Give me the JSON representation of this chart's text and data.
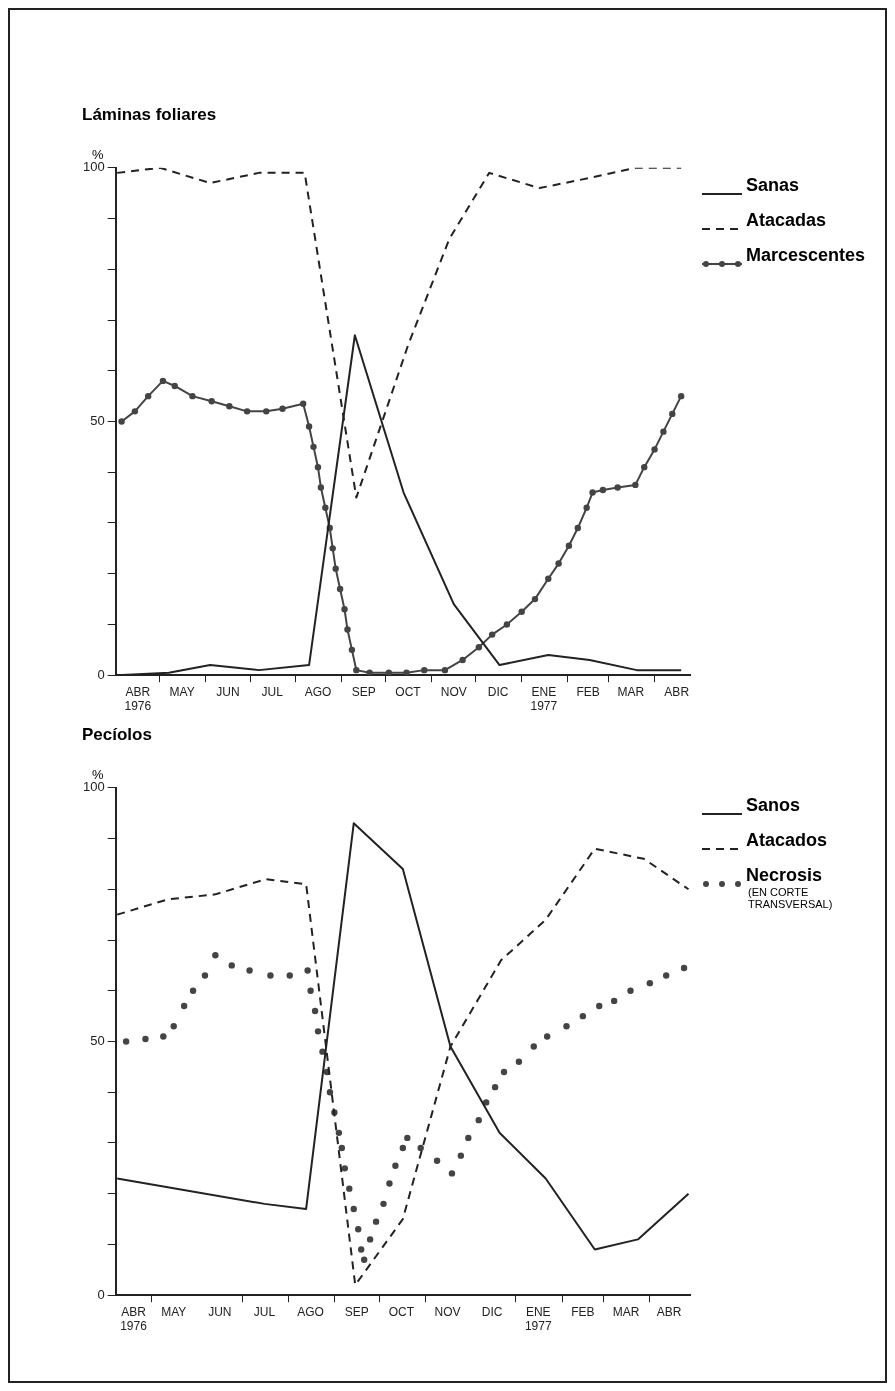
{
  "chart_data": [
    {
      "type": "line",
      "title": "Láminas foliares",
      "ylabel": "%",
      "xlim": [
        "1976-04-01",
        "1977-04-25"
      ],
      "xticks": [
        {
          "value": "1976-04-16",
          "label": "ABR\n1976"
        },
        {
          "value": "1976-05-01",
          "label": null
        },
        {
          "value": "1976-05-16",
          "label": "MAY"
        },
        {
          "value": "1976-06-01",
          "label": null
        },
        {
          "value": "1976-06-16",
          "label": "JUN"
        },
        {
          "value": "1976-07-01",
          "label": null
        },
        {
          "value": "1976-07-16",
          "label": "JUL"
        },
        {
          "value": "1976-08-01",
          "label": null
        },
        {
          "value": "1976-08-16",
          "label": "AGO"
        },
        {
          "value": "1976-09-01",
          "label": null
        },
        {
          "value": "1976-09-16",
          "label": "SEP"
        },
        {
          "value": "1976-10-01",
          "label": null
        },
        {
          "value": "1976-10-16",
          "label": "OCT"
        },
        {
          "value": "1976-11-01",
          "label": null
        },
        {
          "value": "1976-11-16",
          "label": "NOV"
        },
        {
          "value": "1976-12-01",
          "label": null
        },
        {
          "value": "1976-12-16",
          "label": "DIC"
        },
        {
          "value": "1977-01-01",
          "label": null
        },
        {
          "value": "1977-01-16",
          "label": "ENE\n1977"
        },
        {
          "value": "1977-02-01",
          "label": null
        },
        {
          "value": "1977-02-15",
          "label": "FEB"
        },
        {
          "value": "1977-03-01",
          "label": null
        },
        {
          "value": "1977-03-16",
          "label": "MAR"
        },
        {
          "value": "1977-04-01",
          "label": null
        },
        {
          "value": "1977-04-16",
          "label": "ABR"
        }
      ],
      "ylim": [
        0,
        100
      ],
      "yticks": [
        0,
        {
          "value": 10,
          "label": null
        },
        {
          "value": 20,
          "label": null
        },
        {
          "value": 30,
          "label": null
        },
        {
          "value": 40,
          "label": null
        },
        50,
        {
          "value": 60,
          "label": null
        },
        {
          "value": 70,
          "label": null
        },
        {
          "value": 80,
          "label": null
        },
        {
          "value": 90,
          "label": null
        },
        100
      ],
      "legend": "right",
      "series": [
        {
          "name": "Sanas",
          "color": "#222222",
          "line_style": "solid",
          "marker": "none",
          "x": [
            "1976-04-02",
            "1976-05-07",
            "1976-06-04",
            "1976-07-07",
            "1976-08-10",
            "1976-09-10",
            "1976-10-13",
            "1976-11-16",
            "1976-12-17",
            "1977-01-19",
            "1977-02-16",
            "1977-03-20",
            "1977-04-19"
          ],
          "values": [
            0,
            0.5,
            2,
            1,
            2,
            67,
            36,
            14,
            2,
            4,
            3,
            1,
            1
          ]
        },
        {
          "name": "Atacadas",
          "color": "#222222",
          "line_style": "dashed",
          "marker": "none",
          "x": [
            "1976-04-02",
            "1976-05-01",
            "1976-06-04",
            "1976-07-07",
            "1976-08-07",
            "1976-09-11",
            "1976-10-16",
            "1976-11-13",
            "1976-12-10",
            "1977-01-13",
            "1977-02-16",
            "1977-03-19",
            "1977-04-19"
          ],
          "values": [
            99,
            100,
            97,
            99,
            99,
            35,
            65,
            86,
            99,
            96,
            98,
            100,
            100
          ]
        },
        {
          "name": "Marcescentes",
          "color": "#444444",
          "line_style": "solid",
          "marker": "circle",
          "x": [
            "1976-04-05",
            "1976-04-14",
            "1976-04-23",
            "1976-05-03",
            "1976-05-11",
            "1976-05-23",
            "1976-06-05",
            "1976-06-17",
            "1976-06-29",
            "1976-07-12",
            "1976-07-23",
            "1976-08-06",
            "1976-08-10",
            "1976-08-13",
            "1976-08-16",
            "1976-08-18",
            "1976-08-21",
            "1976-08-24",
            "1976-08-26",
            "1976-08-28",
            "1976-08-31",
            "1976-09-03",
            "1976-09-05",
            "1976-09-08",
            "1976-09-11",
            "1976-09-20",
            "1976-10-03",
            "1976-10-15",
            "1976-10-27",
            "1976-11-10",
            "1976-11-22",
            "1976-12-03",
            "1976-12-12",
            "1976-12-22",
            "1977-01-01",
            "1977-01-10",
            "1977-01-19",
            "1977-01-26",
            "1977-02-02",
            "1977-02-08",
            "1977-02-14",
            "1977-02-18",
            "1977-02-25",
            "1977-03-07",
            "1977-03-19",
            "1977-03-25",
            "1977-04-01",
            "1977-04-07",
            "1977-04-13",
            "1977-04-19"
          ],
          "values": [
            50,
            52,
            55,
            58,
            57,
            55,
            54,
            53,
            52,
            52,
            52.5,
            53.5,
            49,
            45,
            41,
            37,
            33,
            29,
            25,
            21,
            17,
            13,
            9,
            5,
            1,
            0.5,
            0.5,
            0.5,
            1,
            1,
            3,
            5.5,
            8,
            10,
            12.5,
            15,
            19,
            22,
            25.5,
            29,
            33,
            36,
            36.5,
            37,
            37.5,
            41,
            44.5,
            48,
            51.5,
            55
          ]
        }
      ]
    },
    {
      "type": "line",
      "title": "Pecíolos",
      "ylabel": "%",
      "xlim": [
        "1976-04-07",
        "1977-04-28"
      ],
      "xticks": [
        {
          "value": "1976-04-19",
          "label": "ABR\n1976"
        },
        {
          "value": "1976-05-01",
          "label": null
        },
        {
          "value": "1976-05-16",
          "label": "MAY"
        },
        {
          "value": "1976-06-16",
          "label": "JUN"
        },
        {
          "value": "1976-07-01",
          "label": null
        },
        {
          "value": "1976-07-16",
          "label": "JUL"
        },
        {
          "value": "1976-08-01",
          "label": null
        },
        {
          "value": "1976-08-16",
          "label": "AGO"
        },
        {
          "value": "1976-09-01",
          "label": null
        },
        {
          "value": "1976-09-16",
          "label": "SEP"
        },
        {
          "value": "1976-10-01",
          "label": null
        },
        {
          "value": "1976-10-16",
          "label": "OCT"
        },
        {
          "value": "1976-11-01",
          "label": null
        },
        {
          "value": "1976-11-16",
          "label": "NOV"
        },
        {
          "value": "1976-12-16",
          "label": "DIC"
        },
        {
          "value": "1977-01-01",
          "label": null
        },
        {
          "value": "1977-01-16",
          "label": "ENE\n1977"
        },
        {
          "value": "1977-02-01",
          "label": null
        },
        {
          "value": "1977-02-15",
          "label": "FEB"
        },
        {
          "value": "1977-03-01",
          "label": null
        },
        {
          "value": "1977-03-16",
          "label": "MAR"
        },
        {
          "value": "1977-04-01",
          "label": null
        },
        {
          "value": "1977-04-14",
          "label": "ABR"
        }
      ],
      "ylim": [
        0,
        100
      ],
      "yticks": [
        0,
        {
          "value": 10,
          "label": null
        },
        {
          "value": 20,
          "label": null
        },
        {
          "value": 30,
          "label": null
        },
        {
          "value": 40,
          "label": null
        },
        50,
        {
          "value": 60,
          "label": null
        },
        {
          "value": 70,
          "label": null
        },
        {
          "value": 80,
          "label": null
        },
        {
          "value": 90,
          "label": null
        },
        100
      ],
      "legend": "right",
      "annotations": [
        "(EN CORTE TRANSVERSAL)"
      ],
      "series": [
        {
          "name": "Sanos",
          "color": "#222222",
          "line_style": "solid",
          "marker": "none",
          "x": [
            "1976-04-08",
            "1976-07-16",
            "1976-08-13",
            "1976-09-14",
            "1976-10-17",
            "1976-11-18",
            "1976-12-21",
            "1977-01-21",
            "1977-02-23",
            "1977-03-24",
            "1977-04-27"
          ],
          "values": [
            23,
            18,
            17,
            93,
            84,
            49,
            32,
            23,
            9,
            11,
            20
          ]
        },
        {
          "name": "Atacados",
          "color": "#222222",
          "line_style": "dashed",
          "marker": "none",
          "x": [
            "1976-04-08",
            "1976-05-12",
            "1976-06-13",
            "1976-07-17",
            "1976-08-13",
            "1976-09-15",
            "1976-10-17",
            "1976-11-18",
            "1976-12-22",
            "1977-01-21",
            "1977-02-23",
            "1977-03-28",
            "1977-04-27"
          ],
          "values": [
            75,
            78,
            79,
            82,
            81,
            2,
            15,
            49,
            66,
            74,
            88,
            86,
            80
          ]
        },
        {
          "name": "Necrosis",
          "type": "scatter",
          "color": "#444444",
          "marker": "circle",
          "x": [
            "1976-04-14",
            "1976-04-27",
            "1976-05-09",
            "1976-05-16",
            "1976-05-23",
            "1976-05-29",
            "1976-06-06",
            "1976-06-13",
            "1976-06-24",
            "1976-07-06",
            "1976-07-20",
            "1976-08-02",
            "1976-08-14",
            "1976-08-16",
            "1976-08-19",
            "1976-08-21",
            "1976-08-24",
            "1976-08-27",
            "1976-08-29",
            "1976-09-01",
            "1976-09-04",
            "1976-09-06",
            "1976-09-08",
            "1976-09-11",
            "1976-09-14",
            "1976-09-17",
            "1976-09-19",
            "1976-09-21",
            "1976-09-25",
            "1976-09-29",
            "1976-10-04",
            "1976-10-08",
            "1976-10-12",
            "1976-10-17",
            "1976-10-20",
            "1976-10-29",
            "1976-11-09",
            "1976-11-19",
            "1976-11-25",
            "1976-11-30",
            "1976-12-07",
            "1976-12-12",
            "1976-12-18",
            "1976-12-24",
            "1977-01-03",
            "1977-01-13",
            "1977-01-22",
            "1977-02-04",
            "1977-02-15",
            "1977-02-26",
            "1977-03-08",
            "1977-03-19",
            "1977-04-01",
            "1977-04-12",
            "1977-04-24"
          ],
          "values": [
            50,
            50.5,
            51,
            53,
            57,
            60,
            63,
            67,
            65,
            64,
            63,
            63,
            64,
            60,
            56,
            52,
            48,
            44,
            40,
            36,
            32,
            29,
            25,
            21,
            17,
            13,
            9,
            7,
            11,
            14.5,
            18,
            22,
            25.5,
            29,
            31,
            29,
            26.5,
            24,
            27.5,
            31,
            34.5,
            38,
            41,
            44,
            46,
            49,
            51,
            53,
            55,
            57,
            58,
            60,
            61.5,
            63,
            64.5
          ]
        }
      ]
    }
  ]
}
